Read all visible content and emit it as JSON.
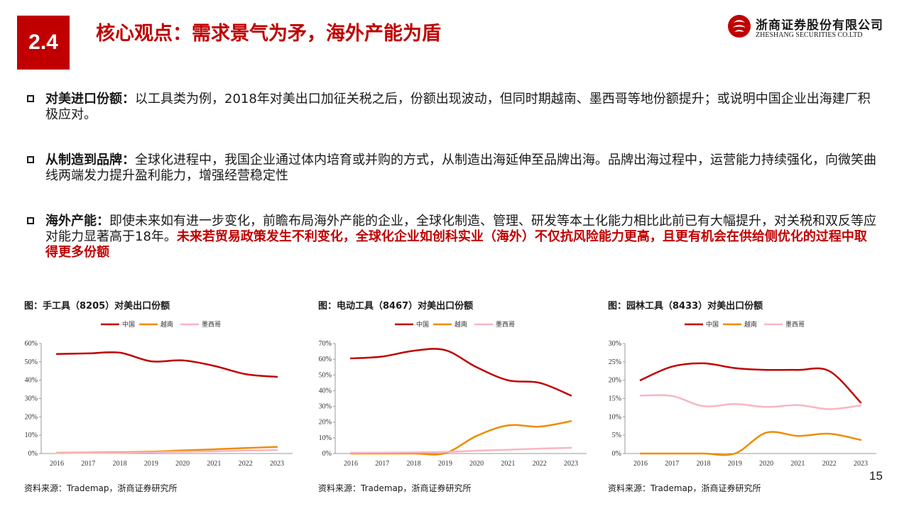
{
  "header": {
    "section_number": "2.4",
    "title": "核心观点：需求景气为矛，海外产能为盾",
    "logo_cn": "浙商证券股份有限公司",
    "logo_en": "ZHESHANG SECURITIES CO.LTD"
  },
  "bullets": [
    {
      "lead": "对美进口份额",
      "colon": "：",
      "text": "以工具类为例，2018年对美出口加征关税之后，份额出现波动，但同时期越南、墨西哥等地份额提升；或说明中国企业出海建厂积极应对。",
      "emphasis": ""
    },
    {
      "lead": "从制造到品牌",
      "colon": "：",
      "text": "全球化进程中，我国企业通过体内培育或并购的方式，从制造出海延伸至品牌出海。品牌出海过程中，运营能力持续强化，向微笑曲线两端发力提升盈利能力，增强经营稳定性",
      "emphasis": ""
    },
    {
      "lead": "海外产能",
      "colon": "：",
      "text": "即使未来如有进一步变化，前瞻布局海外产能的企业，全球化制造、管理、研发等本土化能力相比此前已有大幅提升，对关税和双反等应对能力显著高于18年。",
      "emphasis": "未来若贸易政策发生不利变化，全球化企业如创科实业（海外）不仅抗风险能力更高，且更有机会在供给侧优化的过程中取得更多份额"
    }
  ],
  "chart_data": [
    {
      "type": "line",
      "title": "图：手工具（8205）对美出口份额",
      "source": "资料来源：Trademap，浙商证券研究所",
      "x": [
        "2016",
        "2017",
        "2018",
        "2019",
        "2020",
        "2021",
        "2022",
        "2023"
      ],
      "y_ticks": [
        "0%",
        "10%",
        "20%",
        "30%",
        "40%",
        "50%",
        "60%"
      ],
      "ylim": [
        0,
        60
      ],
      "legend_position": "top-center",
      "grid": false,
      "series": [
        {
          "name": "中国",
          "color": "#c00000",
          "values": [
            54.3,
            54.6,
            55.0,
            50.3,
            50.8,
            47.8,
            43.3,
            41.8
          ]
        },
        {
          "name": "越南",
          "color": "#f08c00",
          "values": [
            0.4,
            0.5,
            0.7,
            1.0,
            1.7,
            2.3,
            3.0,
            3.6
          ]
        },
        {
          "name": "墨西哥",
          "color": "#f7b6c2",
          "values": [
            0.2,
            0.3,
            0.4,
            0.7,
            1.0,
            1.2,
            1.6,
            1.9
          ]
        }
      ]
    },
    {
      "type": "line",
      "title": "图：电动工具（8467）对美出口份额",
      "source": "资料来源：Trademap，浙商证券研究所",
      "x": [
        "2016",
        "2017",
        "2018",
        "2019",
        "2020",
        "2021",
        "2022",
        "2023"
      ],
      "y_ticks": [
        "0%",
        "10%",
        "20%",
        "30%",
        "40%",
        "50%",
        "60%",
        "70%"
      ],
      "ylim": [
        0,
        70
      ],
      "legend_position": "top-center",
      "grid": false,
      "series": [
        {
          "name": "中国",
          "color": "#c00000",
          "values": [
            60.5,
            61.7,
            65.4,
            65.8,
            54.9,
            46.6,
            45.0,
            36.9
          ]
        },
        {
          "name": "越南",
          "color": "#f08c00",
          "values": [
            0.0,
            0.0,
            0.0,
            0.2,
            11.2,
            17.9,
            17.1,
            20.6
          ]
        },
        {
          "name": "墨西哥",
          "color": "#f7b6c2",
          "values": [
            0.5,
            0.6,
            0.7,
            1.0,
            1.8,
            2.4,
            3.1,
            3.6
          ]
        }
      ]
    },
    {
      "type": "line",
      "title": "图：园林工具（8433）对美出口份额",
      "source": "资料来源：Trademap，浙商证券研究所",
      "x": [
        "2016",
        "2017",
        "2018",
        "2019",
        "2020",
        "2021",
        "2022",
        "2023"
      ],
      "y_ticks": [
        "0%",
        "5%",
        "10%",
        "15%",
        "20%",
        "25%",
        "30%"
      ],
      "ylim": [
        0,
        30
      ],
      "legend_position": "top-center",
      "grid": false,
      "series": [
        {
          "name": "中国",
          "color": "#c00000",
          "values": [
            20.0,
            23.7,
            24.6,
            23.3,
            22.8,
            22.8,
            22.5,
            13.9
          ]
        },
        {
          "name": "越南",
          "color": "#f08c00",
          "values": [
            0.0,
            0.0,
            0.0,
            0.0,
            5.7,
            4.8,
            5.4,
            3.7
          ]
        },
        {
          "name": "墨西哥",
          "color": "#f7b6c2",
          "values": [
            15.8,
            15.7,
            12.9,
            13.5,
            12.7,
            13.2,
            12.1,
            13.1
          ]
        }
      ]
    }
  ],
  "page_number": "15"
}
